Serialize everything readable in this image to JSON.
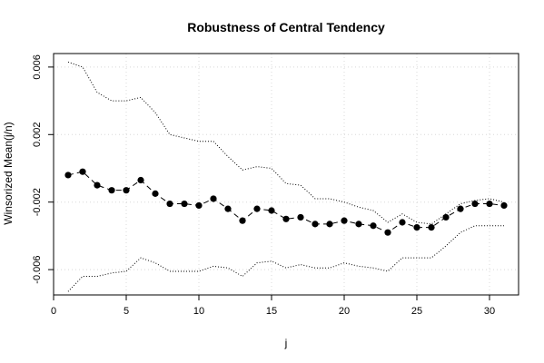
{
  "chart_data": {
    "type": "line",
    "title": "Robustness of Central Tendency",
    "xlabel": "j",
    "ylabel": "Winsorized Mean(j/n)",
    "xlim": [
      0,
      32
    ],
    "ylim": [
      -0.0075,
      0.0068
    ],
    "x_ticks": [
      0,
      5,
      10,
      15,
      20,
      25,
      30
    ],
    "y_ticks": [
      -0.006,
      -0.002,
      0.002,
      0.006
    ],
    "x_tick_labels": [
      "0",
      "5",
      "10",
      "15",
      "20",
      "25",
      "30"
    ],
    "y_tick_labels": [
      "-0.006",
      "-0.002",
      "0.002",
      "0.006"
    ],
    "grid": true,
    "x": [
      1,
      2,
      3,
      4,
      5,
      6,
      7,
      8,
      9,
      10,
      11,
      12,
      13,
      14,
      15,
      16,
      17,
      18,
      19,
      20,
      21,
      22,
      23,
      24,
      25,
      26,
      27,
      28,
      29,
      30,
      31
    ],
    "series": [
      {
        "style": "dashed-points",
        "values": [
          -0.0004,
          -0.0002,
          -0.001,
          -0.0013,
          -0.0013,
          -0.0007,
          -0.0015,
          -0.0021,
          -0.0021,
          -0.0022,
          -0.0018,
          -0.0024,
          -0.0031,
          -0.0024,
          -0.0025,
          -0.003,
          -0.0029,
          -0.0033,
          -0.0033,
          -0.0031,
          -0.0033,
          -0.0034,
          -0.0038,
          -0.0032,
          -0.0035,
          -0.0035,
          -0.0029,
          -0.0024,
          -0.0021,
          -0.0021,
          -0.0022
        ]
      },
      {
        "style": "dotted",
        "values": [
          0.0063,
          0.006,
          0.0045,
          0.004,
          0.004,
          0.0042,
          0.0033,
          0.002,
          0.0018,
          0.0016,
          0.0016,
          0.0007,
          -0.0001,
          0.0001,
          0.0,
          -0.0009,
          -0.001,
          -0.0018,
          -0.0018,
          -0.002,
          -0.0023,
          -0.0025,
          -0.0032,
          -0.0027,
          -0.0032,
          -0.0033,
          -0.0027,
          -0.0021,
          -0.0019,
          -0.0018,
          -0.002
        ]
      },
      {
        "style": "dotted",
        "values": [
          -0.0073,
          -0.0064,
          -0.0064,
          -0.0062,
          -0.0061,
          -0.0053,
          -0.0056,
          -0.0061,
          -0.0061,
          -0.0061,
          -0.0058,
          -0.0059,
          -0.0064,
          -0.0056,
          -0.0055,
          -0.0059,
          -0.0057,
          -0.0059,
          -0.0059,
          -0.0056,
          -0.0058,
          -0.0059,
          -0.0061,
          -0.0053,
          -0.0053,
          -0.0053,
          -0.0046,
          -0.0038,
          -0.0034,
          -0.0034,
          -0.0034
        ]
      }
    ]
  }
}
